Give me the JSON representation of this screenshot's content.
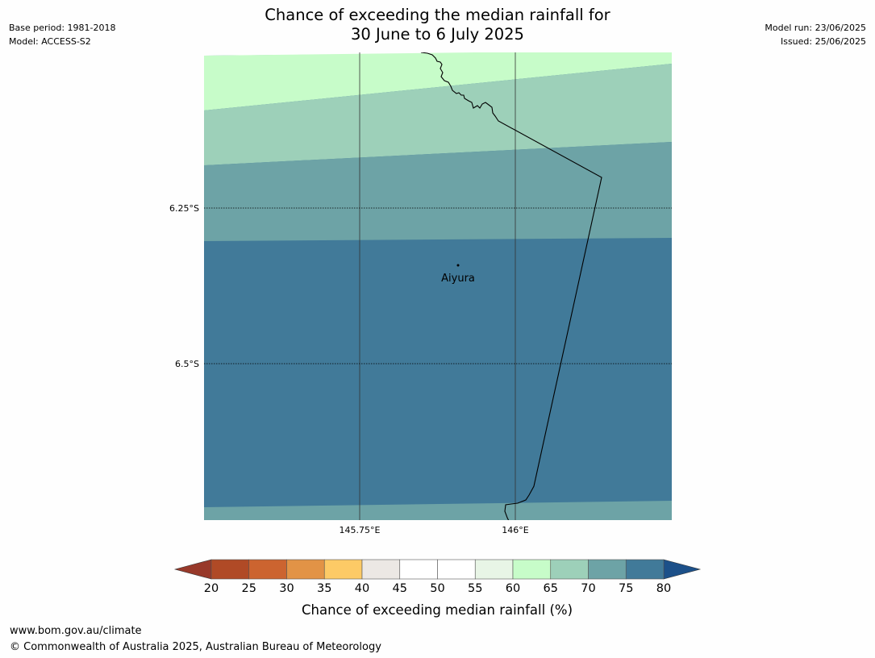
{
  "title_line1": "Chance of exceeding the median rainfall for",
  "title_line2": "30 June to 6 July 2025",
  "meta_left": [
    "Base period: 1981-2018",
    "Model: ACCESS-S2"
  ],
  "meta_right": [
    "Model run: 23/06/2025",
    "Issued: 25/06/2025"
  ],
  "lat_labels": [
    "6.25°S",
    "6.5°S"
  ],
  "lon_labels": [
    "145.75°E",
    "146°E"
  ],
  "town": "Aiyura",
  "colorbar": {
    "ticks": [
      "20",
      "25",
      "30",
      "35",
      "40",
      "45",
      "50",
      "55",
      "60",
      "65",
      "70",
      "75",
      "80"
    ],
    "colors": [
      "#b04a26",
      "#cc6430",
      "#e29346",
      "#fdca66",
      "#ece8e4",
      "#ffffff",
      "#ffffff",
      "#e8f5e6",
      "#c7fcc9",
      "#9dd0b9",
      "#6da3a6",
      "#417a99"
    ],
    "under_color": "#98392a",
    "over_color": "#1c5089",
    "label": "Chance of exceeding median rainfall (%)"
  },
  "map_bands": [
    {
      "range": "60-65",
      "color": "#c7fcc9"
    },
    {
      "range": "65-70",
      "color": "#9dd0b9"
    },
    {
      "range": "70-75",
      "color": "#6da3a6"
    },
    {
      "range": "75-80",
      "color": "#417a99"
    }
  ],
  "footer": [
    "www.bom.gov.au/climate",
    "© Commonwealth of Australia 2025, Australian Bureau of Meteorology"
  ]
}
